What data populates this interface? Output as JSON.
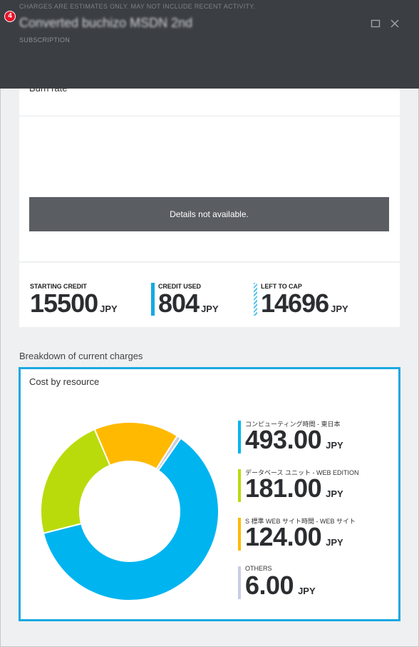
{
  "header": {
    "notice": "CHARGES ARE ESTIMATES ONLY. MAY NOT INCLUDE RECENT ACTIVITY.",
    "badge": "4",
    "title": "Converted buchizo MSDN 2nd",
    "subtitle": "SUBSCRIPTION",
    "badge_color": "#e8132a",
    "background": "#3b3e43"
  },
  "burn_rate": {
    "label": "Burn rate",
    "details_message": "Details not available."
  },
  "credit": {
    "starting": {
      "label": "STARTING CREDIT",
      "value": "15500",
      "unit": "JPY"
    },
    "used": {
      "label": "CREDIT USED",
      "value": "804",
      "unit": "JPY",
      "color": "#14a9e1"
    },
    "left": {
      "label": "LEFT TO CAP",
      "value": "14696",
      "unit": "JPY",
      "color": "#55c3ec"
    }
  },
  "breakdown": {
    "section_title": "Breakdown of current charges",
    "card_title": "Cost by resource",
    "accent": "#1aa9e1",
    "items": [
      {
        "name": "コンピューティング時間 - 東日本",
        "value": "493.00",
        "amount": 493.0,
        "unit": "JPY",
        "color": "#00b4f0"
      },
      {
        "name": "データベース ユニット - WEB EDITION",
        "value": "181.00",
        "amount": 181.0,
        "unit": "JPY",
        "color": "#badb0b"
      },
      {
        "name": "S 標準 WEB サイト時間 - WEB サイト",
        "value": "124.00",
        "amount": 124.0,
        "unit": "JPY",
        "color": "#ffb900"
      },
      {
        "name": "OTHERS",
        "value": "6.00",
        "amount": 6.0,
        "unit": "JPY",
        "color": "#c8cde6"
      }
    ]
  },
  "icons": {
    "maximize": "maximize-icon",
    "close": "close-icon"
  }
}
